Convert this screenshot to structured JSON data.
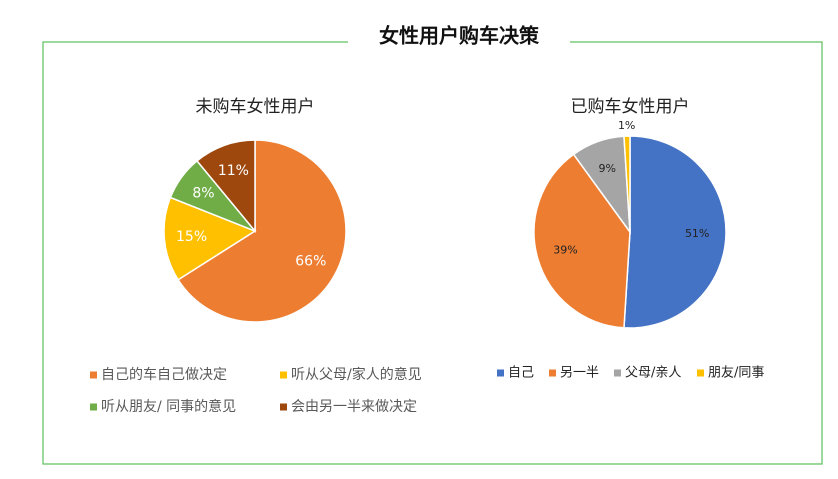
{
  "title": "女性用户购车决策",
  "chart_data": [
    {
      "type": "pie",
      "title": "未购车女性用户",
      "categories": [
        "自己的车自己做决定",
        "听从父母/家人的意见",
        "听从朋友/ 同事的意见",
        "会由另一半来做决定"
      ],
      "values": [
        66,
        15,
        8,
        11
      ],
      "value_labels": [
        "66%",
        "15%",
        "8%",
        "11%"
      ],
      "colors": [
        "#ED7D31",
        "#FFC000",
        "#70AD47",
        "#9E480E"
      ]
    },
    {
      "type": "pie",
      "title": "已购车女性用户",
      "categories": [
        "自己",
        "另一半",
        "父母/亲人",
        "朋友/同事"
      ],
      "values": [
        51,
        39,
        9,
        1
      ],
      "value_labels": [
        "51%",
        "39%",
        "9%",
        "1%"
      ],
      "colors": [
        "#4472C4",
        "#ED7D31",
        "#A5A5A5",
        "#FFC000"
      ]
    }
  ]
}
